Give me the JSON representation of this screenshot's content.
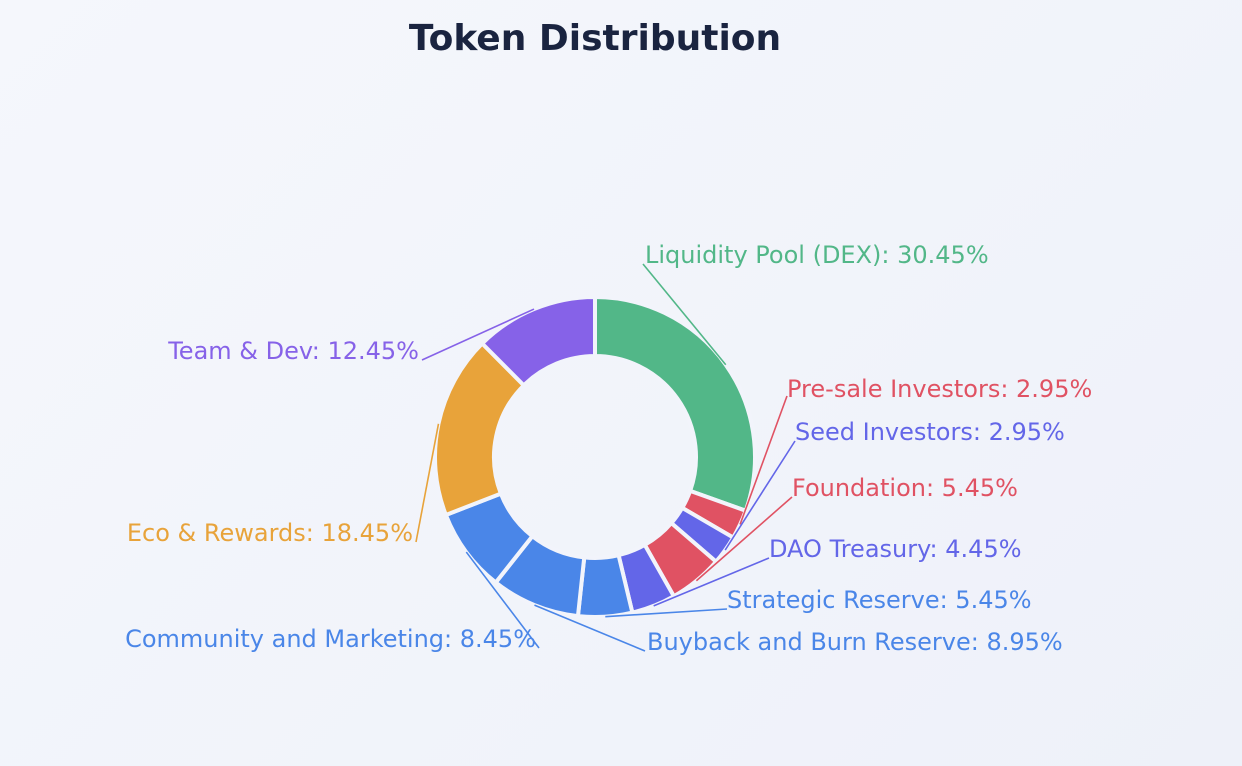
{
  "chart_data": {
    "type": "pie",
    "title": "Token Distribution",
    "hole": true,
    "slices": [
      {
        "label": "Liquidity Pool (DEX): 30.45%",
        "name": "Liquidity Pool (DEX)",
        "value": 30.45,
        "color": "#52b788"
      },
      {
        "label": "Pre-sale Investors: 2.95%",
        "name": "Pre-sale Investors",
        "value": 2.95,
        "color": "#e05263"
      },
      {
        "label": "Seed Investors: 2.95%",
        "name": "Seed Investors",
        "value": 2.95,
        "color": "#6366e8"
      },
      {
        "label": "Foundation: 5.45%",
        "name": "Foundation",
        "value": 5.45,
        "color": "#e05263"
      },
      {
        "label": "DAO Treasury: 4.45%",
        "name": "DAO Treasury",
        "value": 4.45,
        "color": "#6366e8"
      },
      {
        "label": "Strategic Reserve: 5.45%",
        "name": "Strategic Reserve",
        "value": 5.45,
        "color": "#4a86e8"
      },
      {
        "label": "Buyback and Burn Reserve: 8.95%",
        "name": "Buyback and Burn Reserve",
        "value": 8.95,
        "color": "#4a86e8"
      },
      {
        "label": "Community and Marketing: 8.45%",
        "name": "Community and Marketing",
        "value": 8.45,
        "color": "#4a86e8"
      },
      {
        "label": "Eco & Rewards: 18.45%",
        "name": "Eco & Rewards",
        "value": 18.45,
        "color": "#e8a33a"
      },
      {
        "label": "Team & Dev: 12.45%",
        "name": "Team & Dev",
        "value": 12.45,
        "color": "#8662e8"
      }
    ]
  }
}
